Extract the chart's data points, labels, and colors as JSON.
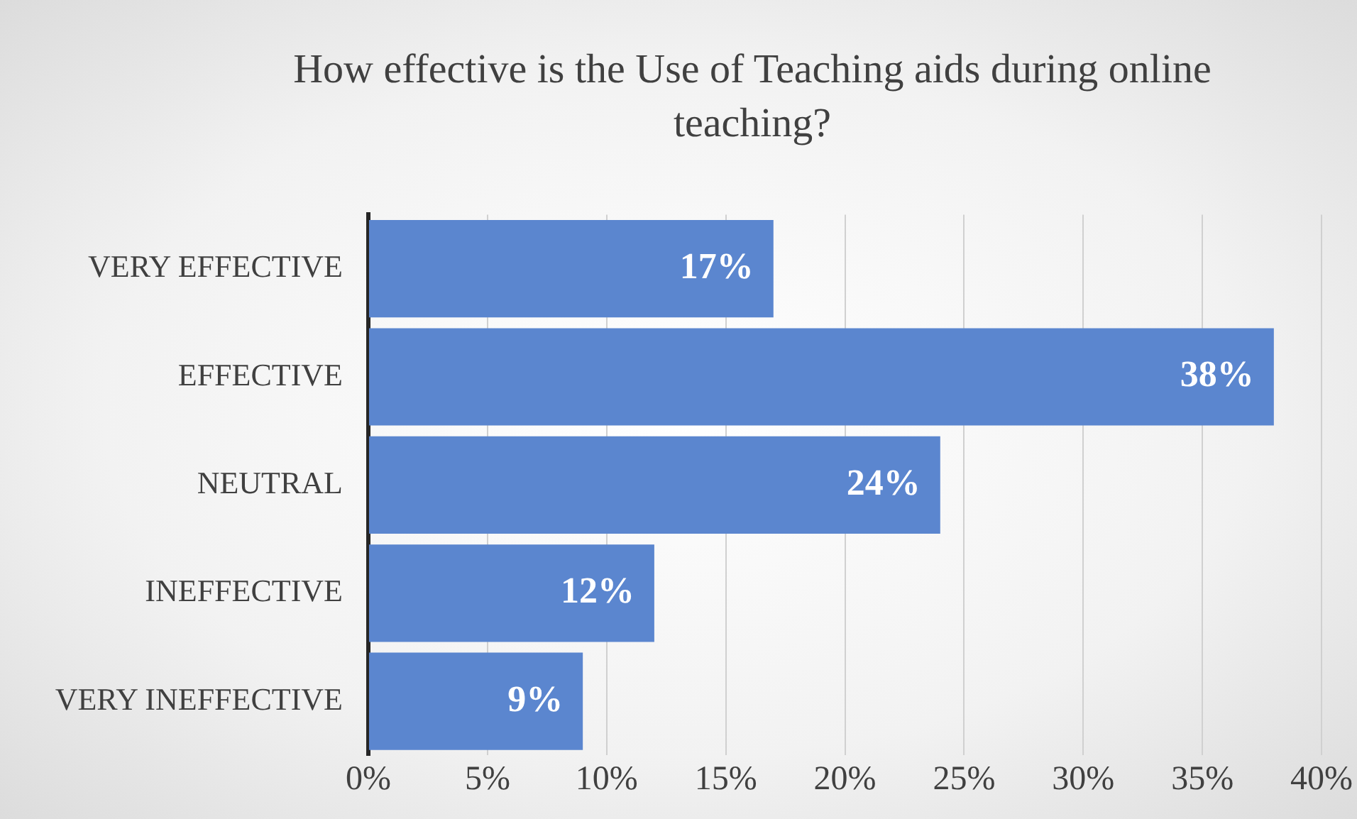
{
  "chart_data": {
    "type": "bar",
    "orientation": "horizontal",
    "title": "How effective is the Use of Teaching aids during online teaching?",
    "categories": [
      "VERY EFFECTIVE",
      "EFFECTIVE",
      "NEUTRAL",
      "INEFFECTIVE",
      "VERY INEFFECTIVE"
    ],
    "values": [
      17,
      38,
      24,
      12,
      9
    ],
    "color": "#5b86cf",
    "value_labels": [
      "17%",
      "38%",
      "24%",
      "12%",
      "9%"
    ],
    "xlim": [
      0,
      40
    ],
    "xticks": [
      {
        "value": 0,
        "label": "0%"
      },
      {
        "value": 5,
        "label": "5%"
      },
      {
        "value": 10,
        "label": "10%"
      },
      {
        "value": 15,
        "label": "15%"
      },
      {
        "value": 20,
        "label": "20%"
      },
      {
        "value": 25,
        "label": "25%"
      },
      {
        "value": 30,
        "label": "30%"
      },
      {
        "value": 35,
        "label": "35%"
      },
      {
        "value": 40,
        "label": "40%"
      }
    ],
    "grid": "x",
    "legend": false
  }
}
